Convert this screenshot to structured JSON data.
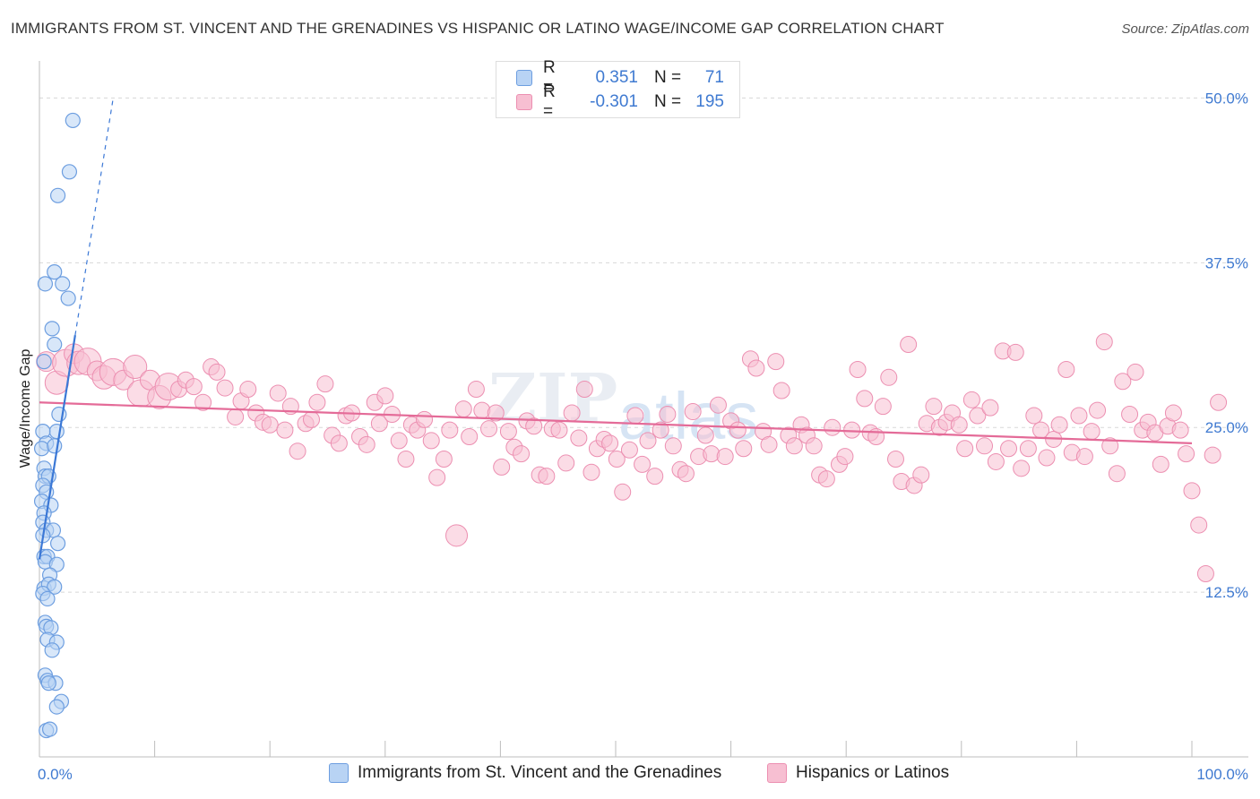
{
  "title": "IMMIGRANTS FROM ST. VINCENT AND THE GRENADINES VS HISPANIC OR LATINO WAGE/INCOME GAP CORRELATION CHART",
  "source": "Source: ZipAtlas.com",
  "legend": {
    "rows": [
      {
        "r_label": "R =",
        "r_value": "0.351",
        "n_label": "N =",
        "n_value": "71"
      },
      {
        "r_label": "R =",
        "r_value": "-0.301",
        "n_label": "N =",
        "n_value": "195"
      }
    ]
  },
  "bottom_legend": {
    "series1": "Immigrants from St. Vincent and the Grenadines",
    "series2": "Hispanics or Latinos"
  },
  "colors": {
    "blue": "#3b78d6",
    "blue_fill": "#b8d3f4",
    "pink": "#e46b98",
    "pink_fill": "#f7bfd2",
    "tick": "#3f7ad1"
  },
  "chart_data": {
    "type": "scatter",
    "title": "IMMIGRANTS FROM ST. VINCENT AND THE GRENADINES VS HISPANIC OR LATINO WAGE/INCOME GAP CORRELATION CHART",
    "xlabel": "",
    "ylabel": "Wage/Income Gap",
    "xlim": [
      0,
      100
    ],
    "ylim": [
      0,
      52
    ],
    "x_tick_labels": [
      "0.0%",
      "100.0%"
    ],
    "y_ticks": [
      12.5,
      25.0,
      37.5,
      50.0
    ],
    "y_tick_labels": [
      "12.5%",
      "25.0%",
      "37.5%",
      "50.0%"
    ],
    "grid": true,
    "series": [
      {
        "name": "Immigrants from St. Vincent and the Grenadines",
        "r": 0.351,
        "n": 71,
        "trend": {
          "x": [
            0.0,
            3.1
          ],
          "y": [
            15.0,
            32.0
          ],
          "dashed_extension_to": [
            6.4,
            50.0
          ]
        },
        "points": [
          [
            2.9,
            48.3
          ],
          [
            2.6,
            44.4
          ],
          [
            1.6,
            42.6
          ],
          [
            1.3,
            36.8
          ],
          [
            0.5,
            35.9
          ],
          [
            2.0,
            35.9
          ],
          [
            2.5,
            34.8
          ],
          [
            1.1,
            32.5
          ],
          [
            1.3,
            31.3
          ],
          [
            0.4,
            30.0
          ],
          [
            1.7,
            26.0
          ],
          [
            1.5,
            24.7
          ],
          [
            0.3,
            24.7
          ],
          [
            0.6,
            23.8
          ],
          [
            0.2,
            23.4
          ],
          [
            1.3,
            23.6
          ],
          [
            0.4,
            21.9
          ],
          [
            0.5,
            21.3
          ],
          [
            0.8,
            21.3
          ],
          [
            0.3,
            20.6
          ],
          [
            0.6,
            20.1
          ],
          [
            0.2,
            19.4
          ],
          [
            1.0,
            19.1
          ],
          [
            0.4,
            18.5
          ],
          [
            0.3,
            17.8
          ],
          [
            0.6,
            17.2
          ],
          [
            1.2,
            17.2
          ],
          [
            0.3,
            16.8
          ],
          [
            1.6,
            16.2
          ],
          [
            0.4,
            15.2
          ],
          [
            0.7,
            15.2
          ],
          [
            0.5,
            14.8
          ],
          [
            1.5,
            14.6
          ],
          [
            0.9,
            13.8
          ],
          [
            0.4,
            12.8
          ],
          [
            0.8,
            13.1
          ],
          [
            1.3,
            12.9
          ],
          [
            0.3,
            12.4
          ],
          [
            0.7,
            12.0
          ],
          [
            0.5,
            10.2
          ],
          [
            0.6,
            9.9
          ],
          [
            1.0,
            9.8
          ],
          [
            0.7,
            8.9
          ],
          [
            1.5,
            8.7
          ],
          [
            1.1,
            8.1
          ],
          [
            0.5,
            6.2
          ],
          [
            0.7,
            5.8
          ],
          [
            1.4,
            5.6
          ],
          [
            0.8,
            5.6
          ],
          [
            1.9,
            4.2
          ],
          [
            1.5,
            3.8
          ],
          [
            0.6,
            2.0
          ],
          [
            0.9,
            2.1
          ]
        ]
      },
      {
        "name": "Hispanics or Latinos",
        "r": -0.301,
        "n": 195,
        "trend": {
          "x": [
            0.0,
            100.0
          ],
          "y": [
            26.9,
            23.8
          ]
        },
        "points": [
          [
            0.6,
            30.0
          ],
          [
            1.5,
            28.4
          ],
          [
            2.3,
            29.9
          ],
          [
            3.0,
            30.6
          ],
          [
            3.4,
            29.9
          ],
          [
            4.2,
            30.0
          ],
          [
            5.0,
            29.3
          ],
          [
            5.6,
            28.8
          ],
          [
            6.4,
            29.2
          ],
          [
            7.3,
            28.6
          ],
          [
            8.3,
            29.6
          ],
          [
            8.8,
            27.6
          ],
          [
            9.6,
            28.6
          ],
          [
            10.4,
            27.3
          ],
          [
            11.2,
            28.1
          ],
          [
            12.1,
            27.9
          ],
          [
            12.7,
            28.6
          ],
          [
            13.4,
            28.1
          ],
          [
            14.2,
            26.9
          ],
          [
            14.9,
            29.6
          ],
          [
            15.4,
            29.2
          ],
          [
            16.1,
            28.0
          ],
          [
            17.0,
            25.8
          ],
          [
            17.5,
            27.0
          ],
          [
            18.1,
            27.9
          ],
          [
            18.8,
            26.1
          ],
          [
            19.4,
            25.4
          ],
          [
            20.0,
            25.2
          ],
          [
            20.7,
            27.6
          ],
          [
            21.3,
            24.8
          ],
          [
            21.8,
            26.6
          ],
          [
            22.4,
            23.2
          ],
          [
            23.1,
            25.3
          ],
          [
            23.6,
            25.6
          ],
          [
            24.1,
            26.9
          ],
          [
            24.8,
            28.3
          ],
          [
            25.4,
            24.4
          ],
          [
            26.0,
            23.8
          ],
          [
            26.6,
            25.9
          ],
          [
            27.1,
            26.1
          ],
          [
            27.8,
            24.3
          ],
          [
            28.4,
            23.7
          ],
          [
            29.1,
            26.9
          ],
          [
            29.5,
            25.3
          ],
          [
            30.0,
            27.4
          ],
          [
            30.6,
            26.0
          ],
          [
            31.2,
            24.0
          ],
          [
            31.8,
            22.6
          ],
          [
            32.3,
            25.2
          ],
          [
            32.8,
            24.8
          ],
          [
            33.4,
            25.6
          ],
          [
            34.0,
            24.0
          ],
          [
            34.5,
            21.2
          ],
          [
            35.1,
            22.6
          ],
          [
            35.6,
            24.8
          ],
          [
            36.2,
            16.8
          ],
          [
            36.8,
            26.4
          ],
          [
            37.3,
            24.3
          ],
          [
            37.9,
            27.9
          ],
          [
            38.4,
            26.3
          ],
          [
            39.0,
            24.9
          ],
          [
            39.6,
            26.1
          ],
          [
            40.1,
            22.0
          ],
          [
            40.7,
            24.7
          ],
          [
            41.2,
            23.5
          ],
          [
            41.8,
            23.0
          ],
          [
            42.3,
            25.5
          ],
          [
            42.9,
            25.1
          ],
          [
            43.4,
            21.4
          ],
          [
            44.0,
            21.3
          ],
          [
            44.5,
            24.9
          ],
          [
            45.1,
            24.8
          ],
          [
            45.7,
            22.3
          ],
          [
            46.2,
            26.1
          ],
          [
            46.8,
            24.2
          ],
          [
            47.3,
            27.9
          ],
          [
            47.9,
            21.6
          ],
          [
            48.4,
            23.4
          ],
          [
            49.0,
            24.1
          ],
          [
            49.5,
            23.8
          ],
          [
            50.1,
            22.6
          ],
          [
            50.6,
            20.1
          ],
          [
            51.2,
            23.3
          ],
          [
            51.7,
            25.9
          ],
          [
            52.3,
            22.2
          ],
          [
            52.8,
            24.0
          ],
          [
            53.4,
            21.3
          ],
          [
            53.9,
            24.8
          ],
          [
            54.5,
            26.0
          ],
          [
            55.0,
            23.6
          ],
          [
            55.6,
            21.8
          ],
          [
            56.1,
            21.5
          ],
          [
            56.7,
            26.2
          ],
          [
            57.2,
            22.8
          ],
          [
            57.8,
            24.4
          ],
          [
            58.3,
            23.0
          ],
          [
            58.9,
            26.7
          ],
          [
            59.5,
            22.8
          ],
          [
            60.0,
            25.5
          ],
          [
            60.6,
            24.8
          ],
          [
            61.1,
            23.4
          ],
          [
            61.7,
            30.2
          ],
          [
            62.2,
            29.5
          ],
          [
            62.8,
            24.7
          ],
          [
            63.3,
            23.7
          ],
          [
            63.9,
            30.0
          ],
          [
            64.4,
            27.8
          ],
          [
            65.0,
            24.4
          ],
          [
            65.5,
            23.6
          ],
          [
            66.1,
            25.2
          ],
          [
            66.6,
            24.4
          ],
          [
            67.2,
            23.6
          ],
          [
            67.7,
            21.4
          ],
          [
            68.3,
            21.1
          ],
          [
            68.8,
            25.0
          ],
          [
            69.4,
            22.2
          ],
          [
            69.9,
            22.8
          ],
          [
            70.5,
            24.8
          ],
          [
            71.0,
            29.4
          ],
          [
            71.6,
            27.2
          ],
          [
            72.1,
            24.6
          ],
          [
            72.6,
            24.3
          ],
          [
            73.2,
            26.6
          ],
          [
            73.7,
            28.8
          ],
          [
            74.3,
            22.6
          ],
          [
            74.8,
            20.9
          ],
          [
            75.4,
            31.3
          ],
          [
            75.9,
            20.6
          ],
          [
            76.5,
            21.4
          ],
          [
            77.0,
            25.3
          ],
          [
            77.6,
            26.6
          ],
          [
            78.1,
            25.0
          ],
          [
            78.7,
            25.4
          ],
          [
            79.2,
            26.1
          ],
          [
            79.8,
            25.2
          ],
          [
            80.3,
            23.4
          ],
          [
            80.9,
            27.1
          ],
          [
            81.4,
            25.9
          ],
          [
            82.0,
            23.6
          ],
          [
            82.5,
            26.5
          ],
          [
            83.0,
            22.4
          ],
          [
            83.6,
            30.8
          ],
          [
            84.1,
            23.4
          ],
          [
            84.7,
            30.7
          ],
          [
            85.2,
            21.9
          ],
          [
            85.8,
            23.4
          ],
          [
            86.3,
            25.9
          ],
          [
            86.9,
            24.8
          ],
          [
            87.4,
            22.7
          ],
          [
            88.0,
            24.1
          ],
          [
            88.5,
            25.2
          ],
          [
            89.1,
            29.4
          ],
          [
            89.6,
            23.1
          ],
          [
            90.2,
            25.9
          ],
          [
            90.7,
            22.8
          ],
          [
            91.3,
            24.7
          ],
          [
            91.8,
            26.3
          ],
          [
            92.4,
            31.5
          ],
          [
            92.9,
            23.6
          ],
          [
            93.5,
            21.5
          ],
          [
            94.0,
            28.5
          ],
          [
            94.6,
            26.0
          ],
          [
            95.1,
            29.2
          ],
          [
            95.7,
            24.8
          ],
          [
            96.2,
            25.4
          ],
          [
            96.8,
            24.6
          ],
          [
            97.3,
            22.2
          ],
          [
            97.9,
            25.1
          ],
          [
            98.4,
            26.1
          ],
          [
            99.0,
            24.8
          ],
          [
            99.5,
            23.0
          ],
          [
            100.0,
            20.2
          ],
          [
            100.6,
            17.6
          ],
          [
            101.2,
            13.9
          ],
          [
            101.8,
            22.9
          ],
          [
            102.3,
            26.9
          ]
        ]
      }
    ]
  }
}
